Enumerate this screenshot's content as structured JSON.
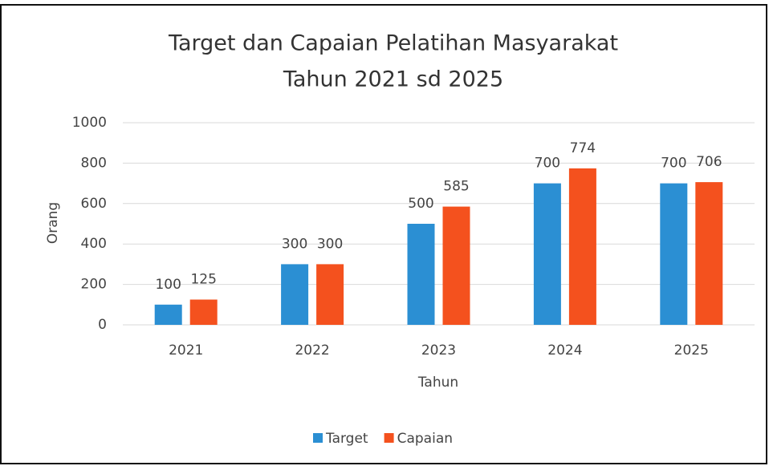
{
  "chart_data": {
    "type": "bar",
    "title": [
      "Target dan Capaian Pelatihan Masyarakat",
      "Tahun 2021 sd 2025"
    ],
    "x_label": "Tahun",
    "y_label": "Orang",
    "categories": [
      "2021",
      "2022",
      "2023",
      "2024",
      "2025"
    ],
    "series": [
      {
        "name": "Target",
        "color": "#2b8fd3",
        "values": [
          100,
          300,
          500,
          700,
          700
        ]
      },
      {
        "name": "Capaian",
        "color": "#f4511e",
        "values": [
          125,
          300,
          585,
          774,
          706
        ]
      }
    ],
    "ylim": [
      0,
      1000
    ],
    "yticks": [
      0,
      200,
      400,
      600,
      800,
      1000
    ],
    "grid": true,
    "legend": "bottom"
  }
}
